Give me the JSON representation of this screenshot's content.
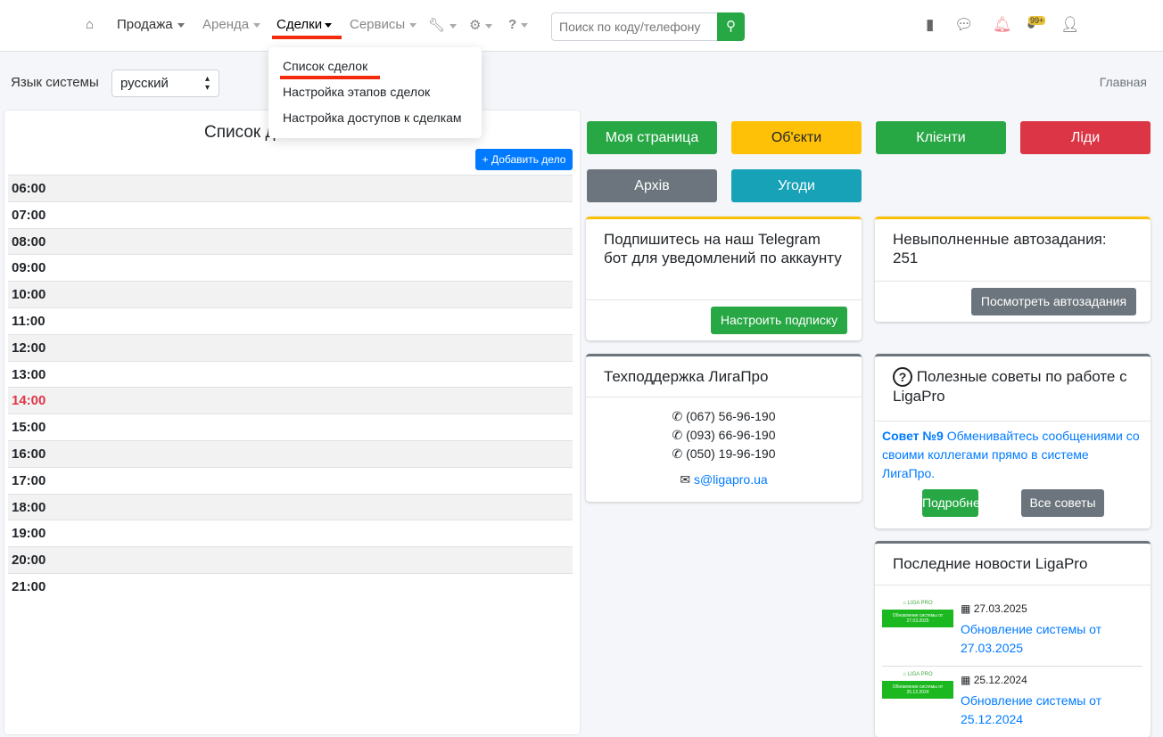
{
  "nav": {
    "items": [
      "Продажа",
      "Аренда",
      "Сделки",
      "Сервисы"
    ],
    "search_placeholder": "Поиск по коду/телефону",
    "badge": "99+"
  },
  "dropdown": [
    "Список сделок",
    "Настройка этапов сделок",
    "Настройка доступов к сделкам"
  ],
  "lang": {
    "label": "Язык системы",
    "value": "русский"
  },
  "breadcrumb": "Главная",
  "schedule": {
    "title": "Список дел на",
    "add": "Добавить дело",
    "times": [
      "06:00",
      "07:00",
      "08:00",
      "09:00",
      "10:00",
      "11:00",
      "12:00",
      "13:00",
      "14:00",
      "15:00",
      "16:00",
      "17:00",
      "18:00",
      "19:00",
      "20:00",
      "21:00"
    ],
    "current": "14:00"
  },
  "buttons": [
    {
      "label": "Моя страница",
      "color": "#28a745"
    },
    {
      "label": "Об'єкти",
      "color": "#ffc107"
    },
    {
      "label": "Клієнти",
      "color": "#28a745"
    },
    {
      "label": "Ліди",
      "color": "#dc3545"
    },
    {
      "label": "Архів",
      "color": "#6c757d"
    },
    {
      "label": "Угоди",
      "color": "#17a2b8"
    }
  ],
  "telegram": {
    "title": "Подпишитесь на наш Telegram бот для уведомлений по аккаунту",
    "button": "Настроить подписку"
  },
  "autotasks": {
    "title": "Невыполненные автозадания: 251",
    "button": "Посмотреть автозадания"
  },
  "support": {
    "title": "Техподдержка ЛигаПро",
    "phones": [
      "(067) 56-96-190",
      "(093) 66-96-190",
      "(050) 19-96-190"
    ],
    "email": "s@ligapro.ua"
  },
  "tips": {
    "title": "Полезные советы по работе с LigaPro",
    "tip_label": "Совет №9",
    "tip_text": "Обменивайтесь сообщениями со своими коллегами прямо в системе ЛигаПро.",
    "more": "Подробнее",
    "all": "Все советы"
  },
  "news": {
    "title": "Последние новости LigaPro",
    "items": [
      {
        "date": "27.03.2025",
        "title": "Обновление системы от 27.03.2025",
        "thumb": "Обновление системы от 27.03.2025"
      },
      {
        "date": "25.12.2024",
        "title": "Обновление системы от 25.12.2024",
        "thumb": "Обновление системы от 25.12.2024"
      }
    ],
    "logo": "LIGA PRO"
  }
}
